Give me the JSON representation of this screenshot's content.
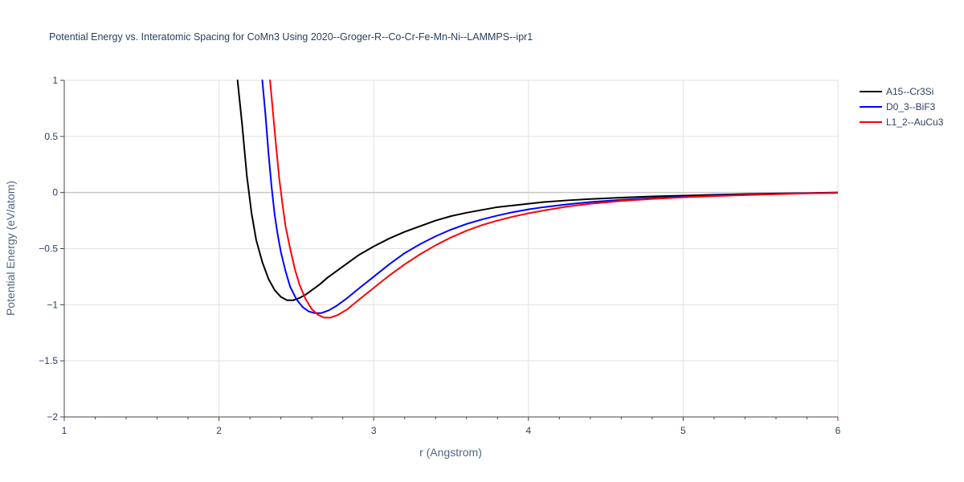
{
  "chart_data": {
    "type": "line",
    "title": "Potential Energy vs. Interatomic Spacing for CoMn3 Using 2020--Groger-R--Co-Cr-Fe-Mn-Ni--LAMMPS--ipr1",
    "xlabel": "r (Angstrom)",
    "ylabel": "Potential Energy (eV/atom)",
    "xlim": [
      1,
      6
    ],
    "ylim": [
      -2,
      1
    ],
    "x_ticks": [
      1,
      2,
      3,
      4,
      5,
      6
    ],
    "x_tick_labels": [
      "1",
      "2",
      "3",
      "4",
      "5",
      "6"
    ],
    "x_minor_ticks": [
      1.2,
      1.4,
      1.6,
      1.8,
      2.2,
      2.4,
      2.6,
      2.8,
      3.2,
      3.4,
      3.6,
      3.8,
      4.2,
      4.4,
      4.6,
      4.8,
      5.2,
      5.4,
      5.6,
      5.8
    ],
    "y_ticks": [
      1,
      0.5,
      0,
      -0.5,
      -1,
      -1.5,
      -2
    ],
    "y_tick_labels": [
      "1",
      "0.5",
      "0",
      "−0.5",
      "−1",
      "−1.5",
      "−2"
    ],
    "grid": true,
    "legend_position": "top-right",
    "series": [
      {
        "name": "A15--Cr3Si",
        "color": "#000000",
        "points": [
          [
            2.12,
            1.0
          ],
          [
            2.15,
            0.6
          ],
          [
            2.18,
            0.15
          ],
          [
            2.21,
            -0.18
          ],
          [
            2.24,
            -0.42
          ],
          [
            2.28,
            -0.62
          ],
          [
            2.32,
            -0.77
          ],
          [
            2.36,
            -0.87
          ],
          [
            2.4,
            -0.93
          ],
          [
            2.44,
            -0.96
          ],
          [
            2.48,
            -0.96
          ],
          [
            2.52,
            -0.94
          ],
          [
            2.56,
            -0.91
          ],
          [
            2.6,
            -0.87
          ],
          [
            2.65,
            -0.82
          ],
          [
            2.7,
            -0.76
          ],
          [
            2.8,
            -0.66
          ],
          [
            2.9,
            -0.56
          ],
          [
            3.0,
            -0.48
          ],
          [
            3.1,
            -0.41
          ],
          [
            3.2,
            -0.35
          ],
          [
            3.3,
            -0.3
          ],
          [
            3.4,
            -0.25
          ],
          [
            3.5,
            -0.21
          ],
          [
            3.6,
            -0.18
          ],
          [
            3.7,
            -0.155
          ],
          [
            3.8,
            -0.13
          ],
          [
            3.9,
            -0.115
          ],
          [
            4.0,
            -0.1
          ],
          [
            4.1,
            -0.085
          ],
          [
            4.25,
            -0.07
          ],
          [
            4.4,
            -0.058
          ],
          [
            4.6,
            -0.045
          ],
          [
            4.8,
            -0.035
          ],
          [
            5.0,
            -0.027
          ],
          [
            5.2,
            -0.02
          ],
          [
            5.4,
            -0.014
          ],
          [
            5.6,
            -0.009
          ],
          [
            5.8,
            -0.005
          ],
          [
            6.0,
            0.0
          ]
        ]
      },
      {
        "name": "D0_3--BiF3",
        "color": "#0000ff",
        "points": [
          [
            2.28,
            1.0
          ],
          [
            2.3,
            0.7
          ],
          [
            2.32,
            0.35
          ],
          [
            2.34,
            0.05
          ],
          [
            2.36,
            -0.2
          ],
          [
            2.38,
            -0.38
          ],
          [
            2.4,
            -0.53
          ],
          [
            2.43,
            -0.7
          ],
          [
            2.46,
            -0.84
          ],
          [
            2.5,
            -0.95
          ],
          [
            2.54,
            -1.02
          ],
          [
            2.58,
            -1.06
          ],
          [
            2.62,
            -1.075
          ],
          [
            2.66,
            -1.075
          ],
          [
            2.71,
            -1.05
          ],
          [
            2.76,
            -1.01
          ],
          [
            2.82,
            -0.95
          ],
          [
            2.9,
            -0.86
          ],
          [
            3.0,
            -0.75
          ],
          [
            3.1,
            -0.64
          ],
          [
            3.2,
            -0.54
          ],
          [
            3.3,
            -0.46
          ],
          [
            3.4,
            -0.39
          ],
          [
            3.5,
            -0.33
          ],
          [
            3.6,
            -0.28
          ],
          [
            3.7,
            -0.24
          ],
          [
            3.8,
            -0.205
          ],
          [
            3.9,
            -0.175
          ],
          [
            4.0,
            -0.15
          ],
          [
            4.1,
            -0.13
          ],
          [
            4.25,
            -0.105
          ],
          [
            4.4,
            -0.085
          ],
          [
            4.6,
            -0.065
          ],
          [
            4.8,
            -0.05
          ],
          [
            5.0,
            -0.038
          ],
          [
            5.2,
            -0.028
          ],
          [
            5.4,
            -0.02
          ],
          [
            5.6,
            -0.013
          ],
          [
            5.8,
            -0.007
          ],
          [
            6.0,
            -0.002
          ]
        ]
      },
      {
        "name": "L1_2--AuCu3",
        "color": "#ff0000",
        "points": [
          [
            2.33,
            1.0
          ],
          [
            2.35,
            0.7
          ],
          [
            2.37,
            0.4
          ],
          [
            2.39,
            0.12
          ],
          [
            2.41,
            -0.1
          ],
          [
            2.43,
            -0.3
          ],
          [
            2.46,
            -0.5
          ],
          [
            2.49,
            -0.68
          ],
          [
            2.52,
            -0.82
          ],
          [
            2.56,
            -0.95
          ],
          [
            2.6,
            -1.04
          ],
          [
            2.64,
            -1.09
          ],
          [
            2.68,
            -1.115
          ],
          [
            2.72,
            -1.115
          ],
          [
            2.77,
            -1.09
          ],
          [
            2.83,
            -1.04
          ],
          [
            2.9,
            -0.96
          ],
          [
            3.0,
            -0.85
          ],
          [
            3.1,
            -0.74
          ],
          [
            3.2,
            -0.64
          ],
          [
            3.3,
            -0.55
          ],
          [
            3.4,
            -0.47
          ],
          [
            3.5,
            -0.4
          ],
          [
            3.6,
            -0.34
          ],
          [
            3.7,
            -0.29
          ],
          [
            3.8,
            -0.25
          ],
          [
            3.9,
            -0.215
          ],
          [
            4.0,
            -0.185
          ],
          [
            4.1,
            -0.16
          ],
          [
            4.25,
            -0.125
          ],
          [
            4.4,
            -0.1
          ],
          [
            4.6,
            -0.075
          ],
          [
            4.8,
            -0.057
          ],
          [
            5.0,
            -0.043
          ],
          [
            5.2,
            -0.032
          ],
          [
            5.4,
            -0.023
          ],
          [
            5.6,
            -0.015
          ],
          [
            5.8,
            -0.008
          ],
          [
            6.0,
            -0.003
          ]
        ]
      }
    ]
  }
}
